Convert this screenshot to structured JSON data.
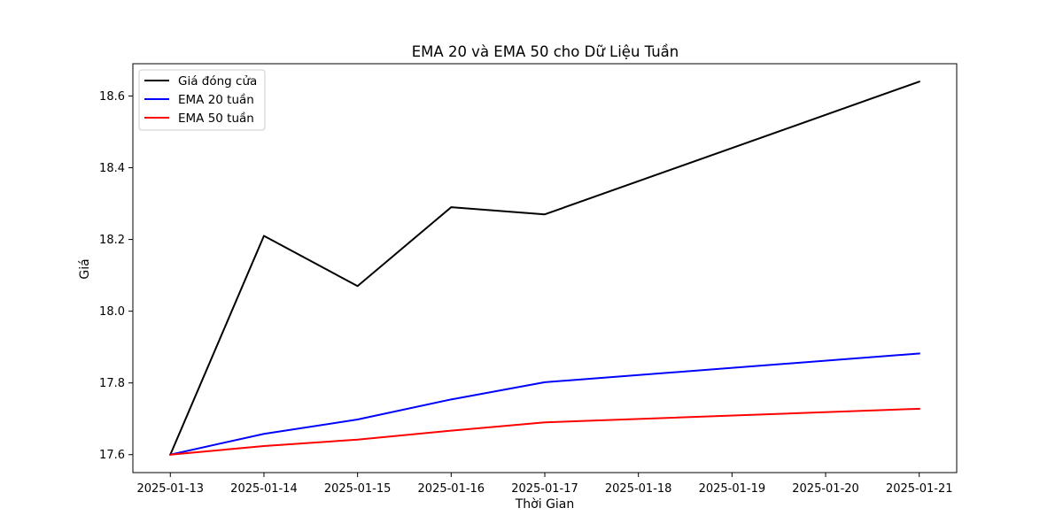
{
  "chart_data": {
    "type": "line",
    "title": "EMA 20 và EMA 50 cho Dữ Liệu Tuần",
    "xlabel": "Thời Gian",
    "ylabel": "Giá",
    "x": [
      "2025-01-13",
      "2025-01-14",
      "2025-01-15",
      "2025-01-16",
      "2025-01-17",
      "2025-01-18",
      "2025-01-19",
      "2025-01-20",
      "2025-01-21"
    ],
    "xticks": [
      "2025-01-13",
      "2025-01-14",
      "2025-01-15",
      "2025-01-16",
      "2025-01-17",
      "2025-01-18",
      "2025-01-19",
      "2025-01-20",
      "2025-01-21"
    ],
    "yticks": [
      17.6,
      17.8,
      18.0,
      18.2,
      18.4,
      18.6
    ],
    "ylim": [
      17.55,
      18.69
    ],
    "xlim": [
      "2025-01-12 14:24",
      "2025-01-21 09:36"
    ],
    "grid": false,
    "legend_position": "upper-left",
    "series": [
      {
        "name": "Giá đóng cửa",
        "color": "#000000",
        "x": [
          "2025-01-13",
          "2025-01-14",
          "2025-01-15",
          "2025-01-16",
          "2025-01-17",
          "2025-01-21"
        ],
        "values": [
          17.6,
          18.21,
          18.07,
          18.29,
          18.27,
          18.64
        ]
      },
      {
        "name": "EMA 20 tuần",
        "color": "#0000ff",
        "x": [
          "2025-01-13",
          "2025-01-14",
          "2025-01-15",
          "2025-01-16",
          "2025-01-17",
          "2025-01-21"
        ],
        "values": [
          17.6,
          17.658,
          17.698,
          17.754,
          17.802,
          17.882
        ]
      },
      {
        "name": "EMA 50 tuần",
        "color": "#ff0000",
        "x": [
          "2025-01-13",
          "2025-01-14",
          "2025-01-15",
          "2025-01-16",
          "2025-01-17",
          "2025-01-21"
        ],
        "values": [
          17.6,
          17.624,
          17.642,
          17.667,
          17.69,
          17.728
        ]
      }
    ]
  }
}
